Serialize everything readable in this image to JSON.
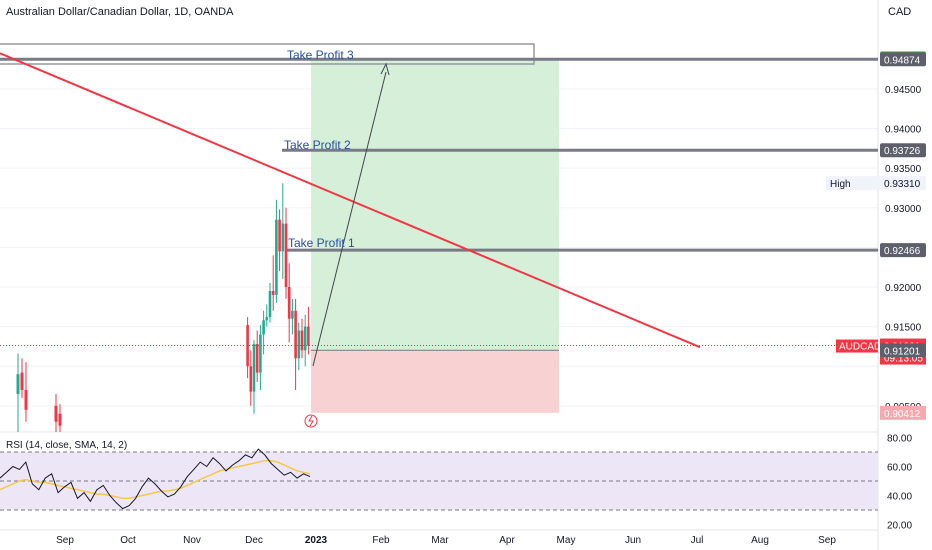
{
  "header": {
    "title": "Australian Dollar/Canadian Dollar, 1D, OANDA",
    "currency": "CAD"
  },
  "rsi": {
    "title": "RSI (14, close, SMA, 14, 2)",
    "ticks": [
      "80.00",
      "60.00",
      "40.00",
      "20.00"
    ]
  },
  "annotations": {
    "tp1": "Take Profit 1",
    "tp2": "Take Profit 2",
    "tp3": "Take Profit 3"
  },
  "price_labels": {
    "tp3_top": "0.94885",
    "tp3": "0.94874",
    "tp2": "0.93726",
    "high_label": "High",
    "high": "0.93310",
    "tp1": "0.92466",
    "symbol": "AUDCAD",
    "last": "0.91261",
    "countdown": "09:13:05",
    "entry": "0.91201",
    "stop": "0.90412"
  },
  "colors": {
    "down": "#f23645",
    "up": "#22ab94",
    "trendline": "#f23645",
    "profit_zone": "#d5efd8",
    "loss_zone": "#f8d2d3",
    "label_gray": "#5d606b",
    "tp_text": "#2a4f9a"
  },
  "chart_data": {
    "type": "candlestick",
    "title": "Australian Dollar/Canadian Dollar, 1D, OANDA",
    "y_axis_ticks": [
      "0.94500",
      "0.94000",
      "0.93500",
      "0.93000",
      "0.92500",
      "0.92000",
      "0.91500",
      "0.90500"
    ],
    "x_axis_ticks": [
      "Sep",
      "Oct",
      "Nov",
      "Dec",
      "2023",
      "Feb",
      "Mar",
      "Apr",
      "May",
      "Jun",
      "Jul",
      "Aug",
      "Sep"
    ],
    "ylim": [
      0.9017,
      0.9542
    ],
    "candles": [
      {
        "o": 0.9152,
        "h": 0.9162,
        "l": 0.9085,
        "c": 0.91
      },
      {
        "o": 0.91,
        "h": 0.912,
        "l": 0.905,
        "c": 0.9068
      },
      {
        "o": 0.9068,
        "h": 0.9133,
        "l": 0.904,
        "c": 0.9128
      },
      {
        "o": 0.9128,
        "h": 0.9145,
        "l": 0.908,
        "c": 0.9092
      },
      {
        "o": 0.9092,
        "h": 0.9152,
        "l": 0.907,
        "c": 0.914
      },
      {
        "o": 0.914,
        "h": 0.917,
        "l": 0.9115,
        "c": 0.9158
      },
      {
        "o": 0.9158,
        "h": 0.9178,
        "l": 0.915,
        "c": 0.9162
      },
      {
        "o": 0.9162,
        "h": 0.9205,
        "l": 0.9155,
        "c": 0.9195
      },
      {
        "o": 0.9195,
        "h": 0.924,
        "l": 0.917,
        "c": 0.919
      },
      {
        "o": 0.919,
        "h": 0.931,
        "l": 0.918,
        "c": 0.9285
      },
      {
        "o": 0.9285,
        "h": 0.9298,
        "l": 0.922,
        "c": 0.9245
      },
      {
        "o": 0.9245,
        "h": 0.9331,
        "l": 0.921,
        "c": 0.928
      },
      {
        "o": 0.928,
        "h": 0.93,
        "l": 0.9185,
        "c": 0.92
      },
      {
        "o": 0.92,
        "h": 0.923,
        "l": 0.913,
        "c": 0.916
      },
      {
        "o": 0.916,
        "h": 0.9185,
        "l": 0.914,
        "c": 0.917
      },
      {
        "o": 0.917,
        "h": 0.9185,
        "l": 0.907,
        "c": 0.911
      },
      {
        "o": 0.911,
        "h": 0.9155,
        "l": 0.9095,
        "c": 0.9145
      },
      {
        "o": 0.9145,
        "h": 0.916,
        "l": 0.911,
        "c": 0.912
      },
      {
        "o": 0.912,
        "h": 0.9165,
        "l": 0.91,
        "c": 0.915
      },
      {
        "o": 0.915,
        "h": 0.9175,
        "l": 0.9115,
        "c": 0.9126
      }
    ],
    "trendline": [
      {
        "x": 0,
        "y": 0.9495
      },
      {
        "x": 700,
        "y": 0.9124
      }
    ],
    "position": {
      "entry": 0.91201,
      "target": 0.94874,
      "stop": 0.90412
    },
    "levels": {
      "tp1": 0.92466,
      "tp2": 0.93726,
      "tp3": 0.94874,
      "tp3_top": 0.94885
    }
  },
  "rsi_data": {
    "ylim": [
      20,
      80
    ],
    "rsi": [
      52,
      56,
      60,
      58,
      63,
      48,
      44,
      52,
      55,
      42,
      46,
      49,
      38,
      42,
      36,
      44,
      47,
      40,
      35,
      31,
      33,
      38,
      46,
      52,
      48,
      43,
      39,
      41,
      46,
      53,
      58,
      63,
      60,
      66,
      62,
      57,
      61,
      64,
      68,
      66,
      72,
      68,
      62,
      58,
      54,
      56,
      52,
      55,
      53
    ],
    "sma": [
      44,
      46,
      48,
      50,
      51,
      50,
      49,
      49,
      48,
      47,
      46,
      45,
      44,
      43,
      42,
      41,
      41,
      40,
      39,
      38,
      38,
      39,
      40,
      41,
      42,
      43,
      43,
      44,
      45,
      47,
      49,
      51,
      53,
      55,
      57,
      58,
      59,
      60,
      61,
      62,
      63,
      64,
      64,
      63,
      61,
      59,
      57,
      56,
      55
    ]
  }
}
